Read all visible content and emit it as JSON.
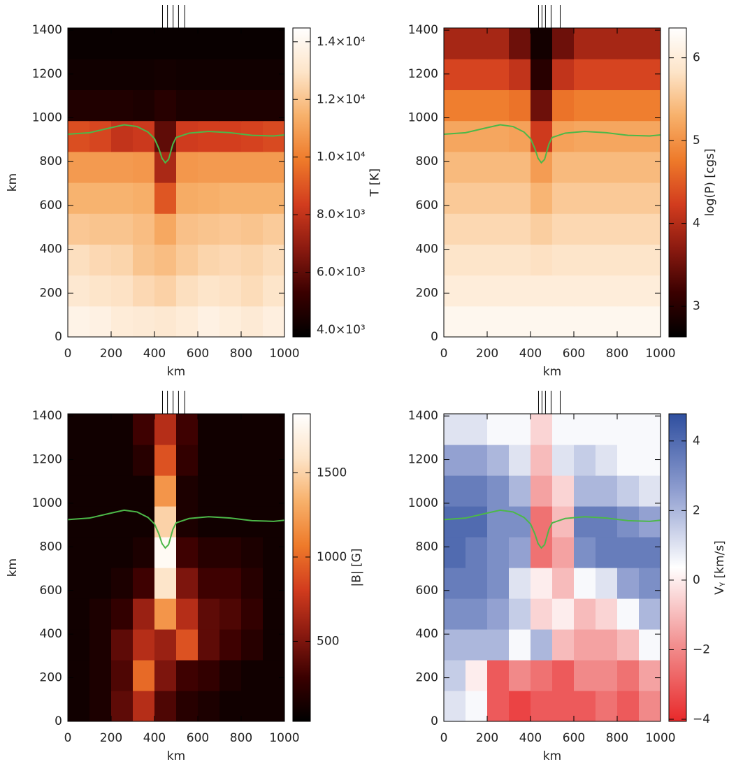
{
  "chart_data": [
    {
      "type": "heatmap",
      "xlabel": "km",
      "ylabel": "km",
      "colorbar_label": "T [K]",
      "xlim": [
        0,
        1000
      ],
      "ylim": [
        0,
        1410
      ],
      "xticks": [
        0,
        200,
        400,
        600,
        800,
        1000
      ],
      "yticks": [
        0,
        200,
        400,
        600,
        800,
        1000,
        1200,
        1400
      ],
      "zlim": [
        3760,
        14480
      ],
      "zticks": [
        {
          "value": 4000,
          "label": "4.0×10³"
        },
        {
          "value": 6000,
          "label": "6.0×10³"
        },
        {
          "value": 8000,
          "label": "8.0×10³"
        },
        {
          "value": 10000,
          "label": "1.0×10⁴"
        },
        {
          "value": 12000,
          "label": "1.2×10⁴"
        },
        {
          "value": 14000,
          "label": "1.4×10⁴"
        }
      ],
      "colorscale": [
        "#000000",
        "#3a0000",
        "#8b1a10",
        "#d23c1e",
        "#ee7a2a",
        "#f7b06a",
        "#fde4c8",
        "#ffffff"
      ],
      "x": [
        50,
        150,
        250,
        350,
        450,
        550,
        650,
        750,
        850,
        950
      ],
      "y": [
        70.5,
        211.5,
        352.5,
        493.5,
        634.5,
        775.5,
        916.5,
        1057.5,
        1198.5,
        1339.5
      ],
      "z": [
        [
          13800,
          13700,
          13400,
          13300,
          13200,
          13400,
          13700,
          13500,
          13300,
          13600
        ],
        [
          13200,
          13000,
          12900,
          12600,
          12400,
          12800,
          13000,
          12900,
          12700,
          13000
        ],
        [
          12800,
          12600,
          12500,
          12000,
          11800,
          12200,
          12500,
          12600,
          12500,
          12700
        ],
        [
          12100,
          12000,
          12000,
          11800,
          11200,
          11900,
          12000,
          12100,
          12000,
          12200
        ],
        [
          11500,
          11500,
          11500,
          11400,
          9000,
          11300,
          11400,
          11500,
          11500,
          11500
        ],
        [
          10800,
          10800,
          10800,
          10700,
          7500,
          10700,
          10800,
          10800,
          10800,
          10800
        ],
        [
          8800,
          8600,
          8000,
          8200,
          6000,
          8300,
          8400,
          8400,
          8500,
          8700
        ],
        [
          4600,
          4600,
          4600,
          4500,
          4800,
          4500,
          4500,
          4500,
          4500,
          4500
        ],
        [
          4200,
          4200,
          4200,
          4200,
          4300,
          4200,
          4200,
          4200,
          4200,
          4200
        ],
        [
          4000,
          4000,
          4000,
          4000,
          4000,
          4000,
          4000,
          4000,
          4000,
          4000
        ]
      ],
      "markers": [
        437,
        460,
        486,
        511,
        540
      ],
      "line": {
        "color": "#4cb848",
        "x": [
          0,
          100,
          200,
          260,
          320,
          370,
          400,
          420,
          435,
          450,
          465,
          485,
          500,
          560,
          650,
          750,
          850,
          950,
          1000
        ],
        "values": [
          925,
          932,
          955,
          968,
          960,
          935,
          905,
          860,
          815,
          795,
          810,
          880,
          910,
          930,
          938,
          932,
          920,
          917,
          922
        ]
      }
    },
    {
      "type": "heatmap",
      "xlabel": "km",
      "colorbar_label": "log(P) [cgs]",
      "xlim": [
        0,
        1000
      ],
      "ylim": [
        0,
        1410
      ],
      "xticks": [
        0,
        200,
        400,
        600,
        800,
        1000
      ],
      "yticks": [
        0,
        200,
        400,
        600,
        800,
        1000,
        1200,
        1400
      ],
      "zlim": [
        2.63,
        6.36
      ],
      "zticks": [
        3,
        4,
        5,
        6
      ],
      "colorscale": [
        "#000000",
        "#3a0000",
        "#8b1a10",
        "#d23c1e",
        "#ee7a2a",
        "#f7b06a",
        "#fde4c8",
        "#ffffff"
      ],
      "x": [
        50,
        150,
        250,
        350,
        450,
        550,
        650,
        750,
        850,
        950
      ],
      "y": [
        70.5,
        211.5,
        352.5,
        493.5,
        634.5,
        775.5,
        916.5,
        1057.5,
        1198.5,
        1339.5
      ],
      "z": [
        [
          6.2,
          6.2,
          6.2,
          6.2,
          6.2,
          6.2,
          6.2,
          6.2,
          6.2,
          6.2
        ],
        [
          6.0,
          6.0,
          6.0,
          6.0,
          6.0,
          6.0,
          6.0,
          6.0,
          6.0,
          6.0
        ],
        [
          5.85,
          5.85,
          5.85,
          5.85,
          5.8,
          5.85,
          5.85,
          5.85,
          5.85,
          5.85
        ],
        [
          5.7,
          5.7,
          5.7,
          5.7,
          5.6,
          5.7,
          5.7,
          5.7,
          5.7,
          5.7
        ],
        [
          5.55,
          5.55,
          5.55,
          5.55,
          5.35,
          5.55,
          5.55,
          5.55,
          5.55,
          5.55
        ],
        [
          5.4,
          5.4,
          5.4,
          5.4,
          5.1,
          5.4,
          5.4,
          5.4,
          5.4,
          5.4
        ],
        [
          5.2,
          5.2,
          5.2,
          5.15,
          4.2,
          5.15,
          5.2,
          5.2,
          5.2,
          5.2
        ],
        [
          4.8,
          4.8,
          4.8,
          4.7,
          3.5,
          4.7,
          4.8,
          4.8,
          4.8,
          4.8
        ],
        [
          4.3,
          4.3,
          4.3,
          4.1,
          3.0,
          4.1,
          4.3,
          4.3,
          4.3,
          4.3
        ],
        [
          3.9,
          3.9,
          3.9,
          3.5,
          2.8,
          3.5,
          3.9,
          3.9,
          3.9,
          3.9
        ]
      ],
      "markers": [
        437,
        453,
        469,
        495,
        537
      ],
      "line": {
        "color": "#4cb848",
        "x": [
          0,
          100,
          200,
          260,
          320,
          370,
          400,
          420,
          435,
          450,
          465,
          485,
          500,
          560,
          650,
          750,
          850,
          950,
          1000
        ],
        "values": [
          925,
          932,
          955,
          968,
          960,
          935,
          905,
          860,
          815,
          795,
          810,
          880,
          910,
          930,
          938,
          932,
          920,
          917,
          922
        ]
      }
    },
    {
      "type": "heatmap",
      "xlabel": "km",
      "ylabel": "km",
      "colorbar_label": "|B| [G]",
      "xlim": [
        0,
        1000
      ],
      "ylim": [
        0,
        1410
      ],
      "xticks": [
        0,
        200,
        400,
        600,
        800,
        1000
      ],
      "yticks": [
        0,
        200,
        400,
        600,
        800,
        1000,
        1200,
        1400
      ],
      "zlim": [
        25,
        1850
      ],
      "zticks": [
        500,
        1000,
        1500
      ],
      "colorscale": [
        "#000000",
        "#3a0000",
        "#8b1a10",
        "#d23c1e",
        "#ee7a2a",
        "#f7b06a",
        "#fde4c8",
        "#ffffff"
      ],
      "x": [
        50,
        150,
        250,
        350,
        450,
        550,
        650,
        750,
        850,
        950
      ],
      "y": [
        70.5,
        211.5,
        352.5,
        493.5,
        634.5,
        775.5,
        916.5,
        1057.5,
        1198.5,
        1339.5
      ],
      "z": [
        [
          100,
          150,
          400,
          700,
          350,
          200,
          150,
          100,
          100,
          100
        ],
        [
          100,
          150,
          350,
          1000,
          500,
          300,
          250,
          150,
          100,
          100
        ],
        [
          100,
          150,
          400,
          700,
          600,
          900,
          400,
          300,
          200,
          100
        ],
        [
          100,
          150,
          250,
          600,
          1200,
          700,
          400,
          350,
          250,
          100
        ],
        [
          100,
          100,
          150,
          300,
          1600,
          500,
          300,
          300,
          200,
          100
        ],
        [
          100,
          100,
          100,
          150,
          1800,
          300,
          200,
          200,
          150,
          100
        ],
        [
          100,
          100,
          100,
          100,
          1500,
          150,
          100,
          100,
          100,
          100
        ],
        [
          100,
          100,
          100,
          100,
          1200,
          150,
          100,
          100,
          100,
          100
        ],
        [
          100,
          100,
          100,
          200,
          900,
          250,
          100,
          100,
          100,
          100
        ],
        [
          100,
          100,
          100,
          300,
          700,
          300,
          100,
          100,
          100,
          100
        ]
      ],
      "markers": [
        437,
        460,
        486,
        511,
        540
      ],
      "line": {
        "color": "#4cb848",
        "x": [
          0,
          100,
          200,
          260,
          320,
          370,
          400,
          420,
          435,
          450,
          465,
          485,
          500,
          560,
          650,
          750,
          850,
          950,
          1000
        ],
        "values": [
          925,
          932,
          955,
          968,
          960,
          935,
          905,
          860,
          815,
          795,
          810,
          880,
          910,
          930,
          938,
          932,
          920,
          917,
          922
        ]
      }
    },
    {
      "type": "heatmap",
      "xlabel": "km",
      "colorbar_label": "Vᵧ [km/s]",
      "xlim": [
        0,
        1000
      ],
      "ylim": [
        0,
        1410
      ],
      "xticks": [
        0,
        200,
        400,
        600,
        800,
        1000
      ],
      "yticks": [
        0,
        200,
        400,
        600,
        800,
        1000,
        1200,
        1400
      ],
      "zlim": [
        -4.06,
        4.78
      ],
      "zticks": [
        {
          "value": -4,
          "label": "−4"
        },
        {
          "value": -2,
          "label": "−2"
        },
        0,
        2,
        4
      ],
      "colorscale": [
        "#e8292a",
        "#f29090",
        "#ffffff",
        "#8f9ed0",
        "#2f4f9f"
      ],
      "x": [
        50,
        150,
        250,
        350,
        450,
        550,
        650,
        750,
        850,
        950
      ],
      "y": [
        70.5,
        211.5,
        352.5,
        493.5,
        634.5,
        775.5,
        916.5,
        1057.5,
        1198.5,
        1339.5
      ],
      "z": [
        [
          1,
          0.5,
          -3,
          -3.5,
          -3,
          -3,
          -3,
          -2.5,
          -3,
          -2
        ],
        [
          1.5,
          0,
          -3,
          -2,
          -2.5,
          -3,
          -2,
          -2,
          -2.5,
          -1.5
        ],
        [
          2,
          2,
          2,
          0.5,
          2,
          -1,
          -1.5,
          -1.5,
          -1,
          0.5
        ],
        [
          3,
          3,
          2.5,
          1.5,
          -0.5,
          0,
          -1,
          -0.5,
          0.5,
          2
        ],
        [
          3.5,
          3.5,
          3,
          1,
          0,
          -1,
          0.5,
          1,
          2.5,
          3
        ],
        [
          4,
          3.5,
          3,
          2.5,
          -2.5,
          -1.5,
          3,
          3.5,
          3.5,
          3.5
        ],
        [
          4,
          4,
          3,
          3,
          -2.5,
          -1,
          3.5,
          3.5,
          3,
          2.5
        ],
        [
          3.5,
          3.5,
          3,
          2,
          -1.5,
          -0.5,
          2,
          2,
          1.5,
          1
        ],
        [
          2.5,
          2.5,
          2,
          1,
          -1,
          1,
          1.5,
          1,
          0.5,
          0.5
        ],
        [
          1,
          1,
          0.5,
          0.5,
          -0.5,
          0.5,
          0.5,
          0.5,
          0.5,
          0.5
        ]
      ],
      "markers": [
        437,
        453,
        469,
        495,
        537
      ],
      "line": {
        "color": "#4cb848",
        "x": [
          0,
          100,
          200,
          260,
          320,
          370,
          400,
          420,
          435,
          450,
          465,
          485,
          500,
          560,
          650,
          750,
          850,
          950,
          1000
        ],
        "values": [
          925,
          932,
          955,
          968,
          960,
          935,
          905,
          860,
          815,
          795,
          810,
          880,
          910,
          930,
          938,
          932,
          920,
          917,
          922
        ]
      }
    }
  ]
}
